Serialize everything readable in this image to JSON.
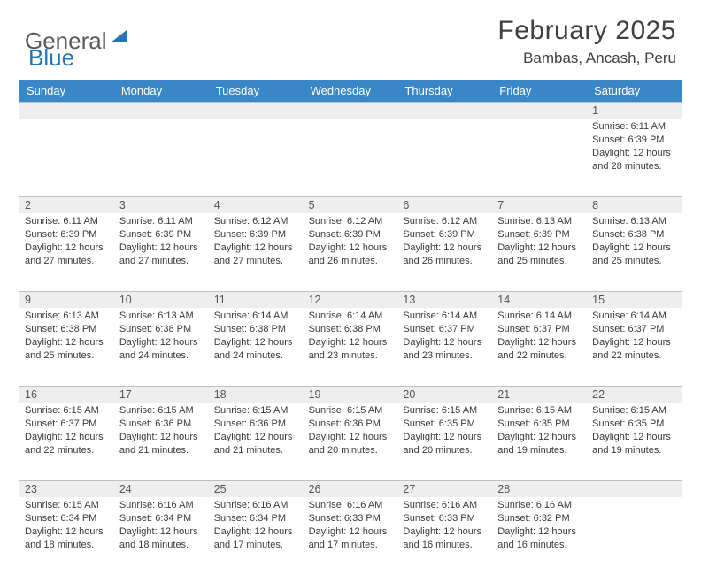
{
  "logo": {
    "text1": "General",
    "text2": "Blue"
  },
  "title": "February 2025",
  "location": "Bambas, Ancash, Peru",
  "colors": {
    "header_bg": "#3a87c7",
    "header_text": "#ffffff",
    "strip_bg": "#eeeeee",
    "strip_border": "#c0c0c0",
    "body_text": "#3a3a3a",
    "logo_gray": "#5a5a5a",
    "logo_blue": "#2176b8"
  },
  "day_headers": [
    "Sunday",
    "Monday",
    "Tuesday",
    "Wednesday",
    "Thursday",
    "Friday",
    "Saturday"
  ],
  "weeks": [
    [
      {
        "n": "",
        "sr": "",
        "ss": "",
        "dl": ""
      },
      {
        "n": "",
        "sr": "",
        "ss": "",
        "dl": ""
      },
      {
        "n": "",
        "sr": "",
        "ss": "",
        "dl": ""
      },
      {
        "n": "",
        "sr": "",
        "ss": "",
        "dl": ""
      },
      {
        "n": "",
        "sr": "",
        "ss": "",
        "dl": ""
      },
      {
        "n": "",
        "sr": "",
        "ss": "",
        "dl": ""
      },
      {
        "n": "1",
        "sr": "Sunrise: 6:11 AM",
        "ss": "Sunset: 6:39 PM",
        "dl": "Daylight: 12 hours and 28 minutes."
      }
    ],
    [
      {
        "n": "2",
        "sr": "Sunrise: 6:11 AM",
        "ss": "Sunset: 6:39 PM",
        "dl": "Daylight: 12 hours and 27 minutes."
      },
      {
        "n": "3",
        "sr": "Sunrise: 6:11 AM",
        "ss": "Sunset: 6:39 PM",
        "dl": "Daylight: 12 hours and 27 minutes."
      },
      {
        "n": "4",
        "sr": "Sunrise: 6:12 AM",
        "ss": "Sunset: 6:39 PM",
        "dl": "Daylight: 12 hours and 27 minutes."
      },
      {
        "n": "5",
        "sr": "Sunrise: 6:12 AM",
        "ss": "Sunset: 6:39 PM",
        "dl": "Daylight: 12 hours and 26 minutes."
      },
      {
        "n": "6",
        "sr": "Sunrise: 6:12 AM",
        "ss": "Sunset: 6:39 PM",
        "dl": "Daylight: 12 hours and 26 minutes."
      },
      {
        "n": "7",
        "sr": "Sunrise: 6:13 AM",
        "ss": "Sunset: 6:39 PM",
        "dl": "Daylight: 12 hours and 25 minutes."
      },
      {
        "n": "8",
        "sr": "Sunrise: 6:13 AM",
        "ss": "Sunset: 6:38 PM",
        "dl": "Daylight: 12 hours and 25 minutes."
      }
    ],
    [
      {
        "n": "9",
        "sr": "Sunrise: 6:13 AM",
        "ss": "Sunset: 6:38 PM",
        "dl": "Daylight: 12 hours and 25 minutes."
      },
      {
        "n": "10",
        "sr": "Sunrise: 6:13 AM",
        "ss": "Sunset: 6:38 PM",
        "dl": "Daylight: 12 hours and 24 minutes."
      },
      {
        "n": "11",
        "sr": "Sunrise: 6:14 AM",
        "ss": "Sunset: 6:38 PM",
        "dl": "Daylight: 12 hours and 24 minutes."
      },
      {
        "n": "12",
        "sr": "Sunrise: 6:14 AM",
        "ss": "Sunset: 6:38 PM",
        "dl": "Daylight: 12 hours and 23 minutes."
      },
      {
        "n": "13",
        "sr": "Sunrise: 6:14 AM",
        "ss": "Sunset: 6:37 PM",
        "dl": "Daylight: 12 hours and 23 minutes."
      },
      {
        "n": "14",
        "sr": "Sunrise: 6:14 AM",
        "ss": "Sunset: 6:37 PM",
        "dl": "Daylight: 12 hours and 22 minutes."
      },
      {
        "n": "15",
        "sr": "Sunrise: 6:14 AM",
        "ss": "Sunset: 6:37 PM",
        "dl": "Daylight: 12 hours and 22 minutes."
      }
    ],
    [
      {
        "n": "16",
        "sr": "Sunrise: 6:15 AM",
        "ss": "Sunset: 6:37 PM",
        "dl": "Daylight: 12 hours and 22 minutes."
      },
      {
        "n": "17",
        "sr": "Sunrise: 6:15 AM",
        "ss": "Sunset: 6:36 PM",
        "dl": "Daylight: 12 hours and 21 minutes."
      },
      {
        "n": "18",
        "sr": "Sunrise: 6:15 AM",
        "ss": "Sunset: 6:36 PM",
        "dl": "Daylight: 12 hours and 21 minutes."
      },
      {
        "n": "19",
        "sr": "Sunrise: 6:15 AM",
        "ss": "Sunset: 6:36 PM",
        "dl": "Daylight: 12 hours and 20 minutes."
      },
      {
        "n": "20",
        "sr": "Sunrise: 6:15 AM",
        "ss": "Sunset: 6:35 PM",
        "dl": "Daylight: 12 hours and 20 minutes."
      },
      {
        "n": "21",
        "sr": "Sunrise: 6:15 AM",
        "ss": "Sunset: 6:35 PM",
        "dl": "Daylight: 12 hours and 19 minutes."
      },
      {
        "n": "22",
        "sr": "Sunrise: 6:15 AM",
        "ss": "Sunset: 6:35 PM",
        "dl": "Daylight: 12 hours and 19 minutes."
      }
    ],
    [
      {
        "n": "23",
        "sr": "Sunrise: 6:15 AM",
        "ss": "Sunset: 6:34 PM",
        "dl": "Daylight: 12 hours and 18 minutes."
      },
      {
        "n": "24",
        "sr": "Sunrise: 6:16 AM",
        "ss": "Sunset: 6:34 PM",
        "dl": "Daylight: 12 hours and 18 minutes."
      },
      {
        "n": "25",
        "sr": "Sunrise: 6:16 AM",
        "ss": "Sunset: 6:34 PM",
        "dl": "Daylight: 12 hours and 17 minutes."
      },
      {
        "n": "26",
        "sr": "Sunrise: 6:16 AM",
        "ss": "Sunset: 6:33 PM",
        "dl": "Daylight: 12 hours and 17 minutes."
      },
      {
        "n": "27",
        "sr": "Sunrise: 6:16 AM",
        "ss": "Sunset: 6:33 PM",
        "dl": "Daylight: 12 hours and 16 minutes."
      },
      {
        "n": "28",
        "sr": "Sunrise: 6:16 AM",
        "ss": "Sunset: 6:32 PM",
        "dl": "Daylight: 12 hours and 16 minutes."
      },
      {
        "n": "",
        "sr": "",
        "ss": "",
        "dl": ""
      }
    ]
  ]
}
